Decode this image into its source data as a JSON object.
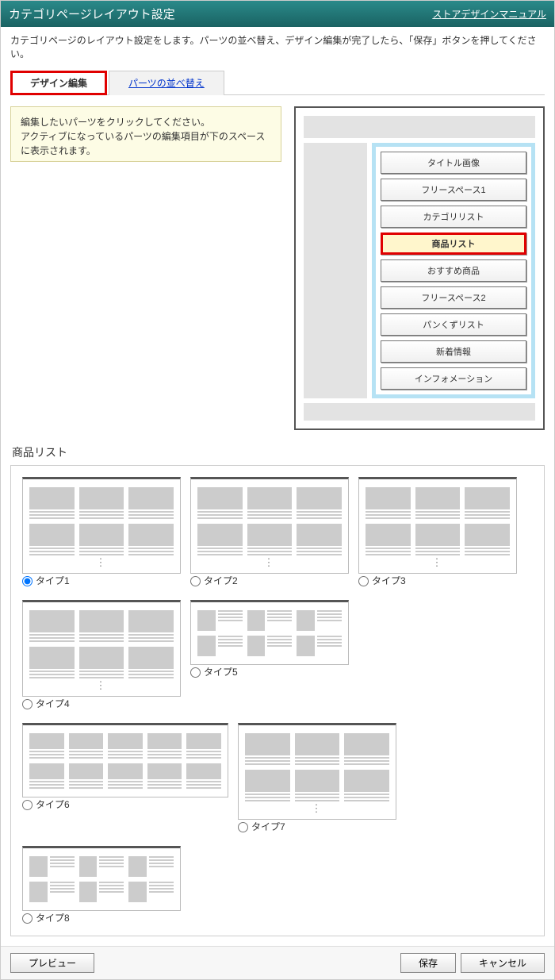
{
  "header": {
    "title": "カテゴリページレイアウト設定",
    "manual_link": "ストアデザインマニュアル"
  },
  "description": "カテゴリページのレイアウト設定をします。パーツの並べ替え、デザイン編集が完了したら、「保存」ボタンを押してください。",
  "tabs": {
    "design_edit": "デザイン編集",
    "reorder": "パーツの並べ替え"
  },
  "help_text": "編集したいパーツをクリックしてください。\nアクティブになっているパーツの編集項目が下のスペースに表示されます。",
  "parts": [
    {
      "label": "タイトル画像",
      "selected": false
    },
    {
      "label": "フリースペース1",
      "selected": false
    },
    {
      "label": "カテゴリリスト",
      "selected": false
    },
    {
      "label": "商品リスト",
      "selected": true
    },
    {
      "label": "おすすめ商品",
      "selected": false
    },
    {
      "label": "フリースペース2",
      "selected": false
    },
    {
      "label": "パンくずリスト",
      "selected": false
    },
    {
      "label": "新着情報",
      "selected": false
    },
    {
      "label": "インフォメーション",
      "selected": false
    }
  ],
  "section_title": "商品リスト",
  "layout_types": [
    {
      "id": 1,
      "label": "タイプ1",
      "selected": true,
      "variant": "grid2x3"
    },
    {
      "id": 2,
      "label": "タイプ2",
      "selected": false,
      "variant": "grid2x3"
    },
    {
      "id": 3,
      "label": "タイプ3",
      "selected": false,
      "variant": "grid2x3"
    },
    {
      "id": 4,
      "label": "タイプ4",
      "selected": false,
      "variant": "grid2x3"
    },
    {
      "id": 5,
      "label": "タイプ5",
      "selected": false,
      "variant": "side2x3"
    },
    {
      "id": 6,
      "label": "タイプ6",
      "selected": false,
      "variant": "grid2x5_wide"
    },
    {
      "id": 7,
      "label": "タイプ7",
      "selected": false,
      "variant": "grid2x3"
    },
    {
      "id": 8,
      "label": "タイプ8",
      "selected": false,
      "variant": "side2x3"
    }
  ],
  "footer": {
    "preview": "プレビュー",
    "save": "保存",
    "cancel": "キャンセル"
  },
  "colors": {
    "header_bg_top": "#2a8a8a",
    "header_bg_bottom": "#1a6262",
    "highlight_red": "#e00000",
    "help_bg": "#fdfce5",
    "preview_accent": "#b6e2f4",
    "placeholder_grey": "#e3e3e3"
  }
}
